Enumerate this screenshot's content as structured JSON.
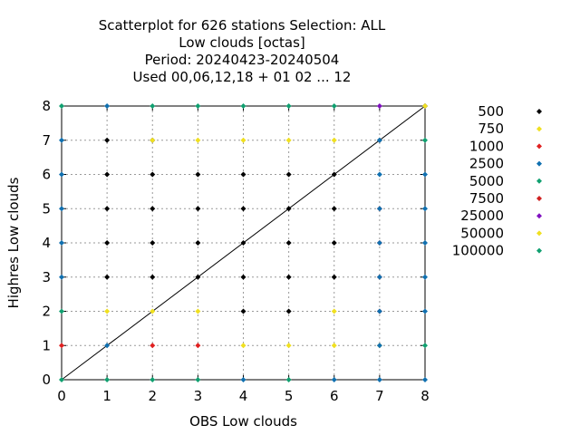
{
  "chart_data": {
    "type": "scatter",
    "title_lines": [
      "Scatterplot for  626 stations Selection: ALL",
      "Low clouds [octas]",
      "Period: 20240423-20240504",
      "Used  00,06,12,18 + 01 02 ... 12"
    ],
    "xlabel": "OBS Low clouds",
    "ylabel": "Highres Low clouds",
    "xlim": [
      0,
      8
    ],
    "ylim": [
      0,
      8
    ],
    "xticks": [
      "0",
      "1",
      "2",
      "3",
      "4",
      "5",
      "6",
      "7",
      "8"
    ],
    "yticks": [
      "0",
      "1",
      "2",
      "3",
      "4",
      "5",
      "6",
      "7",
      "8"
    ],
    "grid": true,
    "diagonal": true,
    "legend_position": "right",
    "series": [
      {
        "name": "500",
        "color": "#000000",
        "points": [
          [
            1,
            7
          ],
          [
            1,
            6
          ],
          [
            1,
            5
          ],
          [
            1,
            4
          ],
          [
            1,
            3
          ],
          [
            2,
            7
          ],
          [
            2,
            6
          ],
          [
            2,
            5
          ],
          [
            2,
            4
          ],
          [
            2,
            3
          ],
          [
            3,
            6
          ],
          [
            3,
            5
          ],
          [
            3,
            4
          ],
          [
            3,
            3
          ],
          [
            4,
            6
          ],
          [
            4,
            5
          ],
          [
            4,
            4
          ],
          [
            4,
            3
          ],
          [
            4,
            2
          ],
          [
            5,
            6
          ],
          [
            5,
            5
          ],
          [
            5,
            4
          ],
          [
            5,
            3
          ],
          [
            5,
            2
          ],
          [
            6,
            6
          ],
          [
            6,
            5
          ],
          [
            6,
            4
          ],
          [
            6,
            3
          ],
          [
            7,
            7
          ],
          [
            8,
            8
          ]
        ]
      },
      {
        "name": "750",
        "color": "#f0e020",
        "points": [
          [
            1,
            2
          ],
          [
            2,
            7
          ],
          [
            2,
            2
          ],
          [
            3,
            7
          ],
          [
            3,
            2
          ],
          [
            4,
            7
          ],
          [
            4,
            1
          ],
          [
            5,
            7
          ],
          [
            5,
            1
          ],
          [
            6,
            7
          ],
          [
            6,
            2
          ],
          [
            6,
            1
          ],
          [
            7,
            1
          ]
        ]
      },
      {
        "name": "1000",
        "color": "#e02020",
        "points": [
          [
            0,
            1
          ],
          [
            2,
            1
          ],
          [
            3,
            1
          ],
          [
            7,
            2
          ],
          [
            7,
            3
          ],
          [
            7,
            4
          ],
          [
            7,
            5
          ]
        ]
      },
      {
        "name": "2500",
        "color": "#1070b0",
        "points": [
          [
            0,
            7
          ],
          [
            0,
            6
          ],
          [
            0,
            5
          ],
          [
            0,
            4
          ],
          [
            0,
            3
          ],
          [
            1,
            8
          ],
          [
            1,
            1
          ],
          [
            4,
            0
          ],
          [
            6,
            0
          ],
          [
            7,
            7
          ],
          [
            7,
            6
          ],
          [
            7,
            5
          ],
          [
            7,
            4
          ],
          [
            7,
            3
          ],
          [
            7,
            2
          ],
          [
            7,
            1
          ],
          [
            7,
            0
          ],
          [
            8,
            6
          ],
          [
            8,
            5
          ],
          [
            8,
            4
          ],
          [
            8,
            3
          ],
          [
            8,
            2
          ],
          [
            8,
            0
          ]
        ]
      },
      {
        "name": "5000",
        "color": "#10a070",
        "points": [
          [
            0,
            8
          ],
          [
            0,
            2
          ],
          [
            0,
            0
          ],
          [
            1,
            0
          ],
          [
            2,
            8
          ],
          [
            2,
            0
          ],
          [
            3,
            8
          ],
          [
            3,
            0
          ],
          [
            4,
            8
          ],
          [
            5,
            8
          ],
          [
            5,
            0
          ],
          [
            6,
            8
          ],
          [
            8,
            7
          ],
          [
            8,
            1
          ]
        ]
      },
      {
        "name": "7500",
        "color": "#d02020",
        "points": []
      },
      {
        "name": "25000",
        "color": "#8010c0",
        "points": [
          [
            7,
            8
          ]
        ]
      },
      {
        "name": "50000",
        "color": "#f0e020",
        "points": [
          [
            8,
            8
          ]
        ]
      },
      {
        "name": "100000",
        "color": "#10a070",
        "points": []
      }
    ]
  }
}
